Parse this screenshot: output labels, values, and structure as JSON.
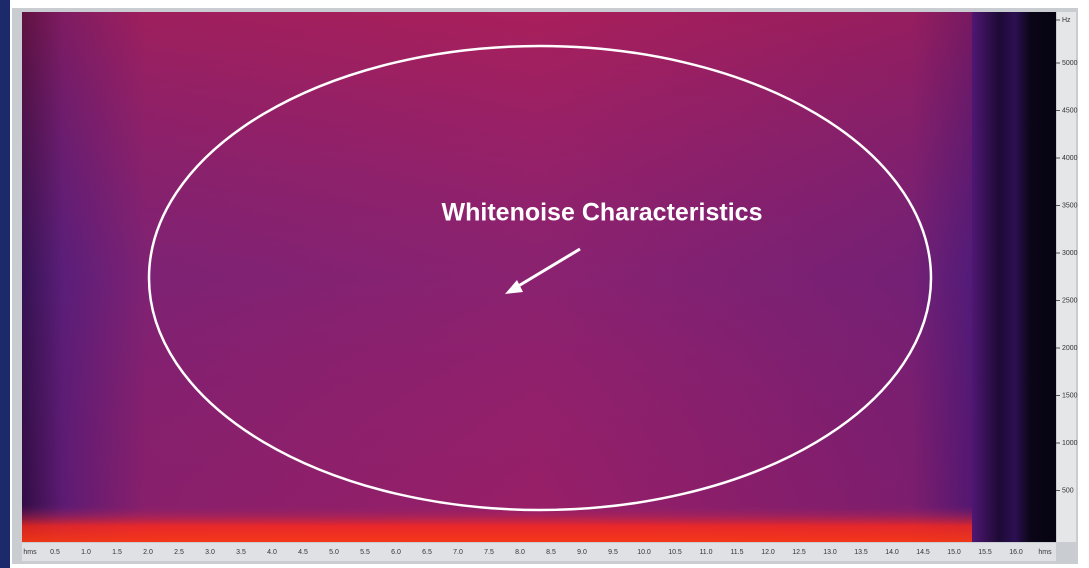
{
  "annotation": "Whitenoise Characteristics",
  "y_axis": {
    "labels": [
      "Hz",
      "5000",
      "4500",
      "4000",
      "3500",
      "3000",
      "2500",
      "2000",
      "1500",
      "1000",
      "500"
    ]
  },
  "x_axis": {
    "labels": [
      "hms",
      "0.5",
      "1.0",
      "1.5",
      "2.0",
      "2.5",
      "3.0",
      "3.5",
      "4.0",
      "4.5",
      "5.0",
      "5.5",
      "6.0",
      "6.5",
      "7.0",
      "7.5",
      "8.0",
      "8.5",
      "9.0",
      "9.5",
      "10.0",
      "10.5",
      "11.0",
      "11.5",
      "12.0",
      "12.5",
      "13.0",
      "13.5",
      "14.0",
      "14.5",
      "15.0",
      "15.5",
      "16.0",
      "hms"
    ]
  }
}
